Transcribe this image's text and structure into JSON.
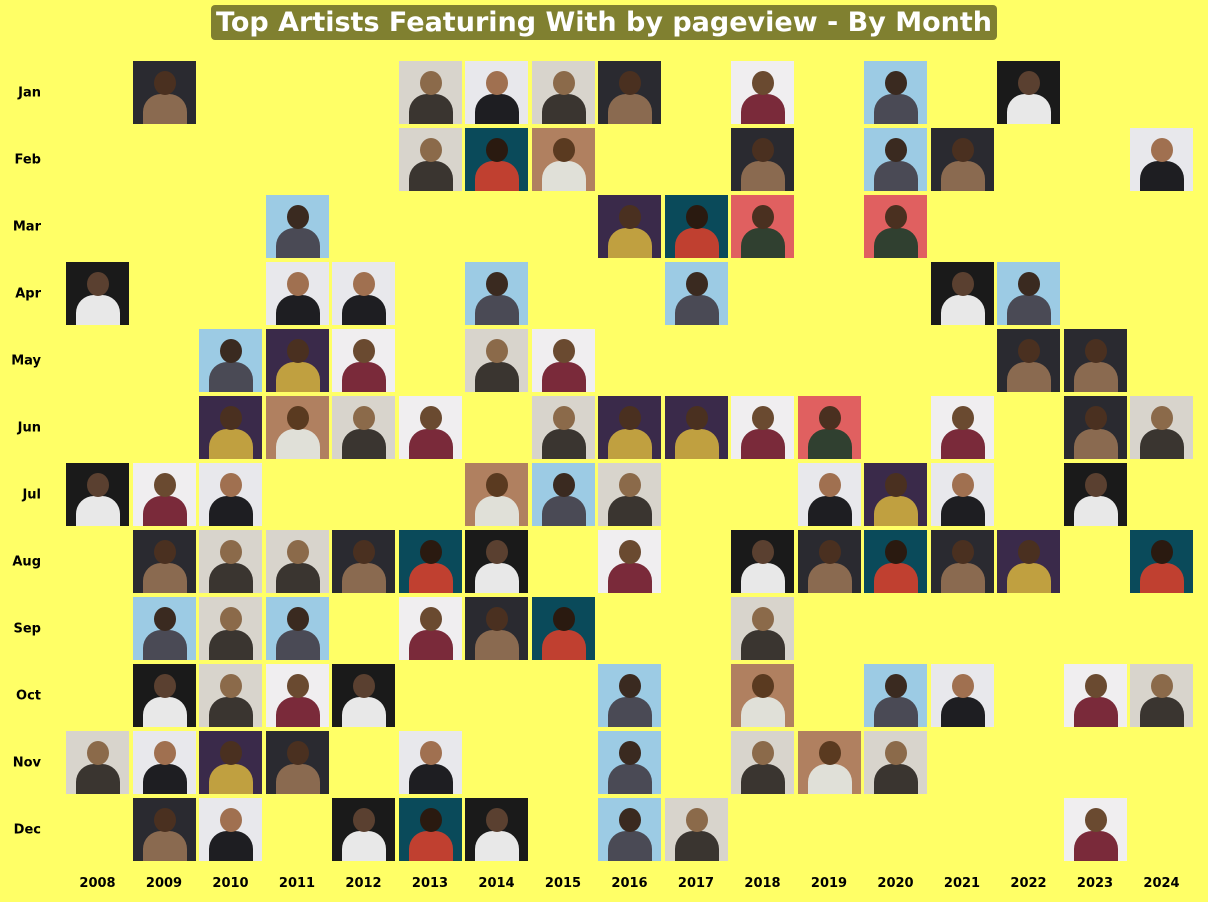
{
  "chart_data": {
    "type": "heatmap",
    "title": "Top Artists Featuring With by pageview - By Month",
    "rows": [
      "Jan",
      "Feb",
      "Mar",
      "Apr",
      "May",
      "Jun",
      "Jul",
      "Aug",
      "Sep",
      "Oct",
      "Nov",
      "Dec"
    ],
    "columns": [
      "2008",
      "2009",
      "2010",
      "2011",
      "2012",
      "2013",
      "2014",
      "2015",
      "2016",
      "2017",
      "2018",
      "2019",
      "2020",
      "2021",
      "2022",
      "2023",
      "2024"
    ],
    "palettes": [
      {
        "bg": "#d8d4cc",
        "fig": "#3a3530",
        "head": "#8b6a4a"
      },
      {
        "bg": "#e8e8ec",
        "fig": "#1e1e22",
        "head": "#a07050"
      },
      {
        "bg": "#9ccbe4",
        "fig": "#4a4a55",
        "head": "#3a2a20"
      },
      {
        "bg": "#1a1a1a",
        "fig": "#e8e8e8",
        "head": "#5a4030"
      },
      {
        "bg": "#2a2a30",
        "fig": "#8a6a50",
        "head": "#4a3020"
      },
      {
        "bg": "#f0eef0",
        "fig": "#7a2a3a",
        "head": "#6a4a30"
      },
      {
        "bg": "#e06060",
        "fig": "#304030",
        "head": "#4a3020"
      },
      {
        "bg": "#0a4a5a",
        "fig": "#c04030",
        "head": "#2a1a10"
      },
      {
        "bg": "#b08060",
        "fig": "#e0e0d8",
        "head": "#5a3a20"
      },
      {
        "bg": "#3a2a4a",
        "fig": "#c0a040",
        "head": "#4a3020"
      }
    ],
    "cells": [
      {
        "m": 0,
        "y": 1,
        "p": 4
      },
      {
        "m": 0,
        "y": 5,
        "p": 0
      },
      {
        "m": 0,
        "y": 6,
        "p": 1
      },
      {
        "m": 0,
        "y": 7,
        "p": 0
      },
      {
        "m": 0,
        "y": 8,
        "p": 4
      },
      {
        "m": 0,
        "y": 10,
        "p": 5
      },
      {
        "m": 0,
        "y": 12,
        "p": 2
      },
      {
        "m": 0,
        "y": 14,
        "p": 3
      },
      {
        "m": 1,
        "y": 5,
        "p": 0
      },
      {
        "m": 1,
        "y": 6,
        "p": 7
      },
      {
        "m": 1,
        "y": 7,
        "p": 8
      },
      {
        "m": 1,
        "y": 10,
        "p": 4
      },
      {
        "m": 1,
        "y": 12,
        "p": 2
      },
      {
        "m": 1,
        "y": 13,
        "p": 4
      },
      {
        "m": 1,
        "y": 16,
        "p": 1
      },
      {
        "m": 2,
        "y": 3,
        "p": 2
      },
      {
        "m": 2,
        "y": 8,
        "p": 9
      },
      {
        "m": 2,
        "y": 9,
        "p": 7
      },
      {
        "m": 2,
        "y": 10,
        "p": 6
      },
      {
        "m": 2,
        "y": 12,
        "p": 6
      },
      {
        "m": 3,
        "y": 0,
        "p": 3
      },
      {
        "m": 3,
        "y": 3,
        "p": 1
      },
      {
        "m": 3,
        "y": 4,
        "p": 1
      },
      {
        "m": 3,
        "y": 6,
        "p": 2
      },
      {
        "m": 3,
        "y": 9,
        "p": 2
      },
      {
        "m": 3,
        "y": 13,
        "p": 3
      },
      {
        "m": 3,
        "y": 14,
        "p": 2
      },
      {
        "m": 4,
        "y": 2,
        "p": 2
      },
      {
        "m": 4,
        "y": 3,
        "p": 9
      },
      {
        "m": 4,
        "y": 4,
        "p": 5
      },
      {
        "m": 4,
        "y": 6,
        "p": 0
      },
      {
        "m": 4,
        "y": 7,
        "p": 5
      },
      {
        "m": 4,
        "y": 14,
        "p": 4
      },
      {
        "m": 4,
        "y": 15,
        "p": 4
      },
      {
        "m": 5,
        "y": 2,
        "p": 9
      },
      {
        "m": 5,
        "y": 3,
        "p": 8
      },
      {
        "m": 5,
        "y": 4,
        "p": 0
      },
      {
        "m": 5,
        "y": 5,
        "p": 5
      },
      {
        "m": 5,
        "y": 7,
        "p": 0
      },
      {
        "m": 5,
        "y": 8,
        "p": 9
      },
      {
        "m": 5,
        "y": 9,
        "p": 9
      },
      {
        "m": 5,
        "y": 10,
        "p": 5
      },
      {
        "m": 5,
        "y": 11,
        "p": 6
      },
      {
        "m": 5,
        "y": 13,
        "p": 5
      },
      {
        "m": 5,
        "y": 15,
        "p": 4
      },
      {
        "m": 5,
        "y": 16,
        "p": 0
      },
      {
        "m": 6,
        "y": 0,
        "p": 3
      },
      {
        "m": 6,
        "y": 1,
        "p": 5
      },
      {
        "m": 6,
        "y": 2,
        "p": 1
      },
      {
        "m": 6,
        "y": 6,
        "p": 8
      },
      {
        "m": 6,
        "y": 7,
        "p": 2
      },
      {
        "m": 6,
        "y": 8,
        "p": 0
      },
      {
        "m": 6,
        "y": 11,
        "p": 1
      },
      {
        "m": 6,
        "y": 12,
        "p": 9
      },
      {
        "m": 6,
        "y": 13,
        "p": 1
      },
      {
        "m": 6,
        "y": 15,
        "p": 3
      },
      {
        "m": 7,
        "y": 1,
        "p": 4
      },
      {
        "m": 7,
        "y": 2,
        "p": 0
      },
      {
        "m": 7,
        "y": 3,
        "p": 0
      },
      {
        "m": 7,
        "y": 4,
        "p": 4
      },
      {
        "m": 7,
        "y": 5,
        "p": 7
      },
      {
        "m": 7,
        "y": 6,
        "p": 3
      },
      {
        "m": 7,
        "y": 8,
        "p": 5
      },
      {
        "m": 7,
        "y": 10,
        "p": 3
      },
      {
        "m": 7,
        "y": 11,
        "p": 4
      },
      {
        "m": 7,
        "y": 12,
        "p": 7
      },
      {
        "m": 7,
        "y": 13,
        "p": 4
      },
      {
        "m": 7,
        "y": 14,
        "p": 9
      },
      {
        "m": 7,
        "y": 16,
        "p": 7
      },
      {
        "m": 8,
        "y": 1,
        "p": 2
      },
      {
        "m": 8,
        "y": 2,
        "p": 0
      },
      {
        "m": 8,
        "y": 3,
        "p": 2
      },
      {
        "m": 8,
        "y": 5,
        "p": 5
      },
      {
        "m": 8,
        "y": 6,
        "p": 4
      },
      {
        "m": 8,
        "y": 7,
        "p": 7
      },
      {
        "m": 8,
        "y": 10,
        "p": 0
      },
      {
        "m": 9,
        "y": 1,
        "p": 3
      },
      {
        "m": 9,
        "y": 2,
        "p": 0
      },
      {
        "m": 9,
        "y": 3,
        "p": 5
      },
      {
        "m": 9,
        "y": 4,
        "p": 3
      },
      {
        "m": 9,
        "y": 8,
        "p": 2
      },
      {
        "m": 9,
        "y": 10,
        "p": 8
      },
      {
        "m": 9,
        "y": 12,
        "p": 2
      },
      {
        "m": 9,
        "y": 13,
        "p": 1
      },
      {
        "m": 9,
        "y": 15,
        "p": 5
      },
      {
        "m": 9,
        "y": 16,
        "p": 0
      },
      {
        "m": 10,
        "y": 0,
        "p": 0
      },
      {
        "m": 10,
        "y": 1,
        "p": 1
      },
      {
        "m": 10,
        "y": 2,
        "p": 9
      },
      {
        "m": 10,
        "y": 3,
        "p": 4
      },
      {
        "m": 10,
        "y": 5,
        "p": 1
      },
      {
        "m": 10,
        "y": 8,
        "p": 2
      },
      {
        "m": 10,
        "y": 10,
        "p": 0
      },
      {
        "m": 10,
        "y": 11,
        "p": 8
      },
      {
        "m": 10,
        "y": 12,
        "p": 0
      },
      {
        "m": 11,
        "y": 1,
        "p": 4
      },
      {
        "m": 11,
        "y": 2,
        "p": 1
      },
      {
        "m": 11,
        "y": 4,
        "p": 3
      },
      {
        "m": 11,
        "y": 5,
        "p": 7
      },
      {
        "m": 11,
        "y": 6,
        "p": 3
      },
      {
        "m": 11,
        "y": 8,
        "p": 2
      },
      {
        "m": 11,
        "y": 9,
        "p": 0
      },
      {
        "m": 11,
        "y": 15,
        "p": 5
      }
    ]
  }
}
